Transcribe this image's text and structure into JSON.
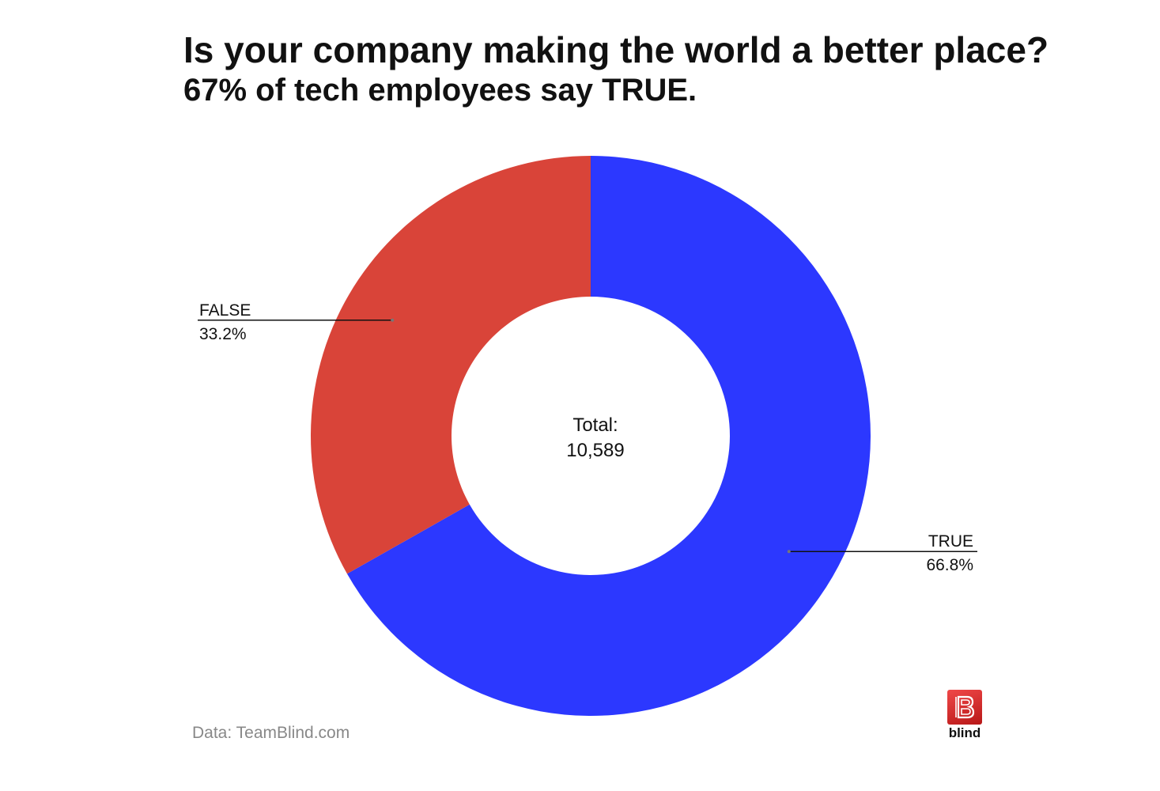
{
  "header": {
    "title": "Is your company making the world a better place?",
    "subtitle": "67% of tech employees say TRUE."
  },
  "chart_data": {
    "type": "pie",
    "donut": true,
    "slices": [
      {
        "label": "TRUE",
        "value": 66.8,
        "value_label": "66.8%",
        "color": "#2c38ff"
      },
      {
        "label": "FALSE",
        "value": 33.2,
        "value_label": "33.2%",
        "color": "#d94439"
      }
    ],
    "center_label_line1": "Total:",
    "center_label_line2": "10,589",
    "legend": "none"
  },
  "footer": {
    "source": "Data: TeamBlind.com",
    "logo_text": "blind"
  }
}
